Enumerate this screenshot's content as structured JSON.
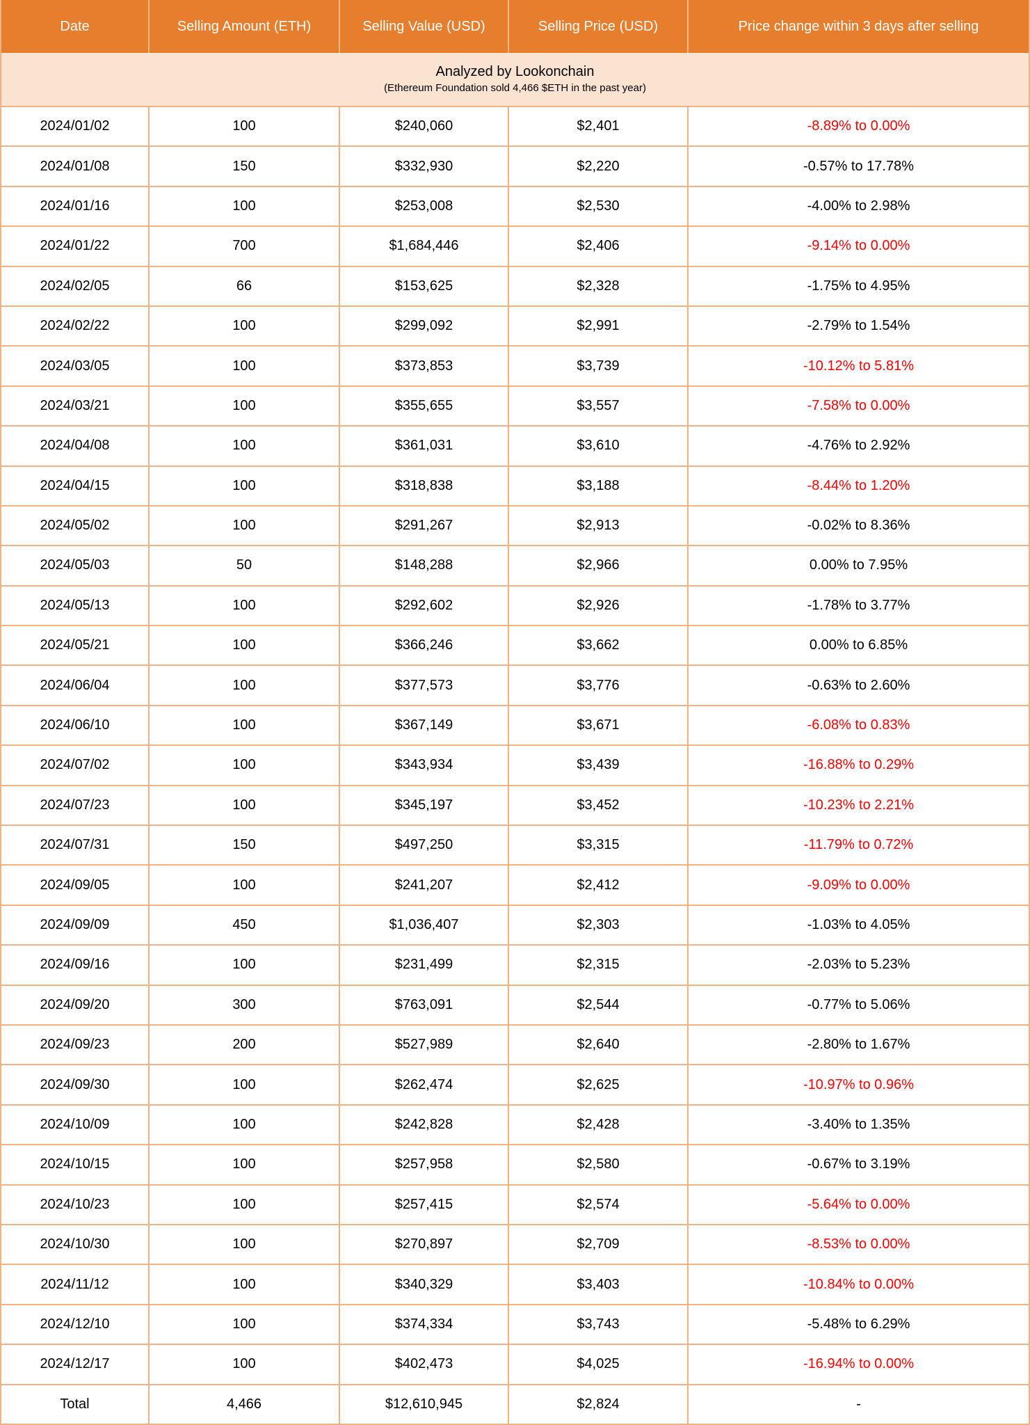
{
  "chart_data": {
    "type": "table",
    "title": "Analyzed by Lookonchain",
    "subtitle": "(Ethereum Foundation sold 4,466 $ETH in the past year)",
    "columns": [
      "Date",
      "Selling Amount (ETH)",
      "Selling Value (USD)",
      "Selling Price (USD)",
      "Price change within 3 days after selling"
    ],
    "rows": [
      {
        "date": "2024/01/02",
        "amount": "100",
        "value": "$240,060",
        "price": "$2,401",
        "change": "-8.89% to 0.00%",
        "red": true
      },
      {
        "date": "2024/01/08",
        "amount": "150",
        "value": "$332,930",
        "price": "$2,220",
        "change": "-0.57% to 17.78%",
        "red": false
      },
      {
        "date": "2024/01/16",
        "amount": "100",
        "value": "$253,008",
        "price": "$2,530",
        "change": "-4.00% to 2.98%",
        "red": false
      },
      {
        "date": "2024/01/22",
        "amount": "700",
        "value": "$1,684,446",
        "price": "$2,406",
        "change": "-9.14% to 0.00%",
        "red": true
      },
      {
        "date": "2024/02/05",
        "amount": "66",
        "value": "$153,625",
        "price": "$2,328",
        "change": "-1.75% to 4.95%",
        "red": false
      },
      {
        "date": "2024/02/22",
        "amount": "100",
        "value": "$299,092",
        "price": "$2,991",
        "change": "-2.79% to 1.54%",
        "red": false
      },
      {
        "date": "2024/03/05",
        "amount": "100",
        "value": "$373,853",
        "price": "$3,739",
        "change": "-10.12% to 5.81%",
        "red": true
      },
      {
        "date": "2024/03/21",
        "amount": "100",
        "value": "$355,655",
        "price": "$3,557",
        "change": "-7.58% to 0.00%",
        "red": true
      },
      {
        "date": "2024/04/08",
        "amount": "100",
        "value": "$361,031",
        "price": "$3,610",
        "change": "-4.76% to 2.92%",
        "red": false
      },
      {
        "date": "2024/04/15",
        "amount": "100",
        "value": "$318,838",
        "price": "$3,188",
        "change": "-8.44% to 1.20%",
        "red": true
      },
      {
        "date": "2024/05/02",
        "amount": "100",
        "value": "$291,267",
        "price": "$2,913",
        "change": "-0.02% to 8.36%",
        "red": false
      },
      {
        "date": "2024/05/03",
        "amount": "50",
        "value": "$148,288",
        "price": "$2,966",
        "change": "0.00% to 7.95%",
        "red": false
      },
      {
        "date": "2024/05/13",
        "amount": "100",
        "value": "$292,602",
        "price": "$2,926",
        "change": "-1.78% to 3.77%",
        "red": false
      },
      {
        "date": "2024/05/21",
        "amount": "100",
        "value": "$366,246",
        "price": "$3,662",
        "change": "0.00% to 6.85%",
        "red": false
      },
      {
        "date": "2024/06/04",
        "amount": "100",
        "value": "$377,573",
        "price": "$3,776",
        "change": "-0.63% to 2.60%",
        "red": false
      },
      {
        "date": "2024/06/10",
        "amount": "100",
        "value": "$367,149",
        "price": "$3,671",
        "change": "-6.08% to 0.83%",
        "red": true
      },
      {
        "date": "2024/07/02",
        "amount": "100",
        "value": "$343,934",
        "price": "$3,439",
        "change": "-16.88% to 0.29%",
        "red": true
      },
      {
        "date": "2024/07/23",
        "amount": "100",
        "value": "$345,197",
        "price": "$3,452",
        "change": "-10.23% to 2.21%",
        "red": true
      },
      {
        "date": "2024/07/31",
        "amount": "150",
        "value": "$497,250",
        "price": "$3,315",
        "change": "-11.79% to 0.72%",
        "red": true
      },
      {
        "date": "2024/09/05",
        "amount": "100",
        "value": "$241,207",
        "price": "$2,412",
        "change": "-9.09% to 0.00%",
        "red": true
      },
      {
        "date": "2024/09/09",
        "amount": "450",
        "value": "$1,036,407",
        "price": "$2,303",
        "change": "-1.03% to 4.05%",
        "red": false
      },
      {
        "date": "2024/09/16",
        "amount": "100",
        "value": "$231,499",
        "price": "$2,315",
        "change": "-2.03% to 5.23%",
        "red": false
      },
      {
        "date": "2024/09/20",
        "amount": "300",
        "value": "$763,091",
        "price": "$2,544",
        "change": "-0.77% to 5.06%",
        "red": false
      },
      {
        "date": "2024/09/23",
        "amount": "200",
        "value": "$527,989",
        "price": "$2,640",
        "change": "-2.80% to 1.67%",
        "red": false
      },
      {
        "date": "2024/09/30",
        "amount": "100",
        "value": "$262,474",
        "price": "$2,625",
        "change": "-10.97% to 0.96%",
        "red": true
      },
      {
        "date": "2024/10/09",
        "amount": "100",
        "value": "$242,828",
        "price": "$2,428",
        "change": "-3.40% to 1.35%",
        "red": false
      },
      {
        "date": "2024/10/15",
        "amount": "100",
        "value": "$257,958",
        "price": "$2,580",
        "change": "-0.67% to 3.19%",
        "red": false
      },
      {
        "date": "2024/10/23",
        "amount": "100",
        "value": "$257,415",
        "price": "$2,574",
        "change": "-5.64% to 0.00%",
        "red": true
      },
      {
        "date": "2024/10/30",
        "amount": "100",
        "value": "$270,897",
        "price": "$2,709",
        "change": "-8.53% to 0.00%",
        "red": true
      },
      {
        "date": "2024/11/12",
        "amount": "100",
        "value": "$340,329",
        "price": "$3,403",
        "change": "-10.84% to 0.00%",
        "red": true
      },
      {
        "date": "2024/12/10",
        "amount": "100",
        "value": "$374,334",
        "price": "$3,743",
        "change": "-5.48% to 6.29%",
        "red": false
      },
      {
        "date": "2024/12/17",
        "amount": "100",
        "value": "$402,473",
        "price": "$4,025",
        "change": "-16.94% to 0.00%",
        "red": true
      }
    ],
    "total_row": {
      "date": "Total",
      "amount": "4,466",
      "value": "$12,610,945",
      "price": "$2,824",
      "change": "-",
      "red": false
    }
  },
  "colors": {
    "header_bg": "#E67E2D",
    "header_text": "#FFFFFF",
    "banner_bg": "#FBE3D1",
    "border": "#F2B284",
    "negative_text": "#FE0000",
    "text": "#000000",
    "row_bg": "#FFFFFF"
  }
}
